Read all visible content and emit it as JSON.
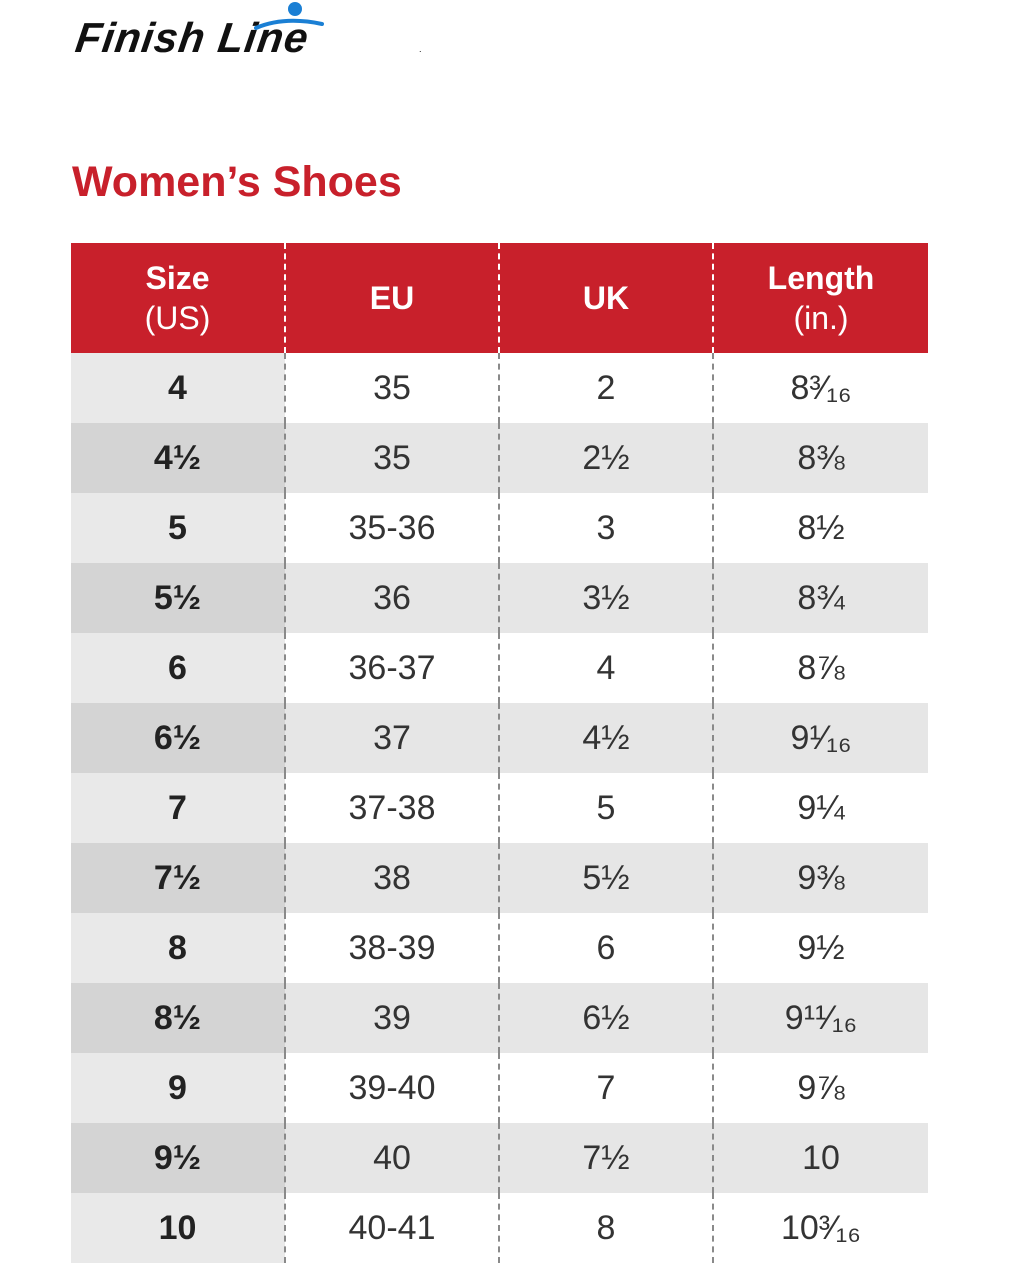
{
  "logo": {
    "text": "Finish Line",
    "tm": "."
  },
  "title": "Women’s Shoes",
  "table": {
    "headers": [
      {
        "line1": "Size",
        "line2": "(US)"
      },
      {
        "line1": "EU",
        "line2": ""
      },
      {
        "line1": "UK",
        "line2": ""
      },
      {
        "line1": "Length",
        "line2": "(in.)"
      }
    ],
    "rows": [
      [
        "4",
        "35",
        "2",
        "8³⁄₁₆"
      ],
      [
        "4½",
        "35",
        "2½",
        "8⅜"
      ],
      [
        "5",
        "35-36",
        "3",
        "8½"
      ],
      [
        "5½",
        "36",
        "3½",
        "8¾"
      ],
      [
        "6",
        "36-37",
        "4",
        "8⅞"
      ],
      [
        "6½",
        "37",
        "4½",
        "9¹⁄₁₆"
      ],
      [
        "7",
        "37-38",
        "5",
        "9¼"
      ],
      [
        "7½",
        "38",
        "5½",
        "9⅜"
      ],
      [
        "8",
        "38-39",
        "6",
        "9½"
      ],
      [
        "8½",
        "39",
        "6½",
        "9¹¹⁄₁₆"
      ],
      [
        "9",
        "39-40",
        "7",
        "9⅞"
      ],
      [
        "9½",
        "40",
        "7½",
        "10"
      ],
      [
        "10",
        "40-41",
        "8",
        "10³⁄₁₆"
      ]
    ]
  },
  "colors": {
    "brand_red": "#c8202b",
    "logo_blue": "#1a7fd4"
  }
}
